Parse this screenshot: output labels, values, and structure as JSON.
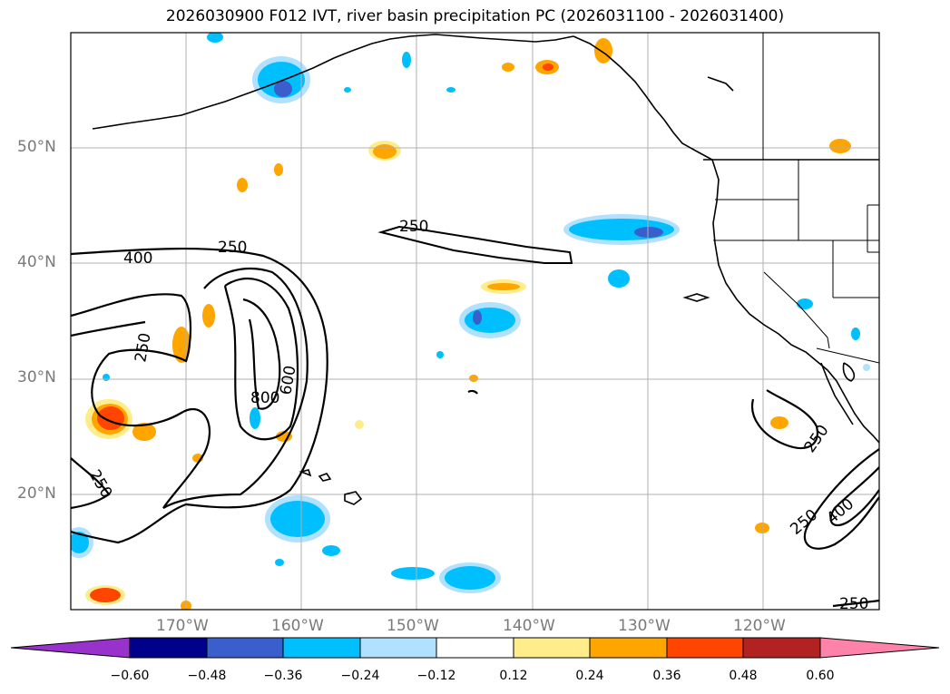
{
  "title": "2026030900 F012 IVT, river basin precipitation PC (2026031100 - 2026031400)",
  "map": {
    "extent": {
      "lon": [
        -180,
        -110
      ],
      "lat": [
        10,
        60
      ]
    },
    "lon_ticks": [
      -170,
      -160,
      -150,
      -140,
      -130,
      -120
    ],
    "lon_labels": [
      "170°W",
      "160°W",
      "150°W",
      "140°W",
      "130°W",
      "120°W"
    ],
    "lat_ticks": [
      20,
      30,
      40,
      50
    ],
    "lat_labels": [
      "20°N",
      "30°N",
      "40°N",
      "50°N"
    ],
    "grid": true,
    "ivt_contour_labels": [
      "250",
      "400",
      "250",
      "250",
      "800",
      "600",
      "250",
      "250",
      "250",
      "400",
      "250"
    ]
  },
  "colorbar": {
    "ticks": [
      "−0.60",
      "−0.48",
      "−0.36",
      "−0.24",
      "−0.12",
      "0.12",
      "0.24",
      "0.36",
      "0.48",
      "0.60"
    ],
    "colors": [
      "#9932cc",
      "#00008b",
      "#3a5fcd",
      "#00bfff",
      "#b0e2ff",
      "#ffffff",
      "#ffec8b",
      "#ffa500",
      "#ff4500",
      "#b22222",
      "#ff82ab"
    ]
  }
}
